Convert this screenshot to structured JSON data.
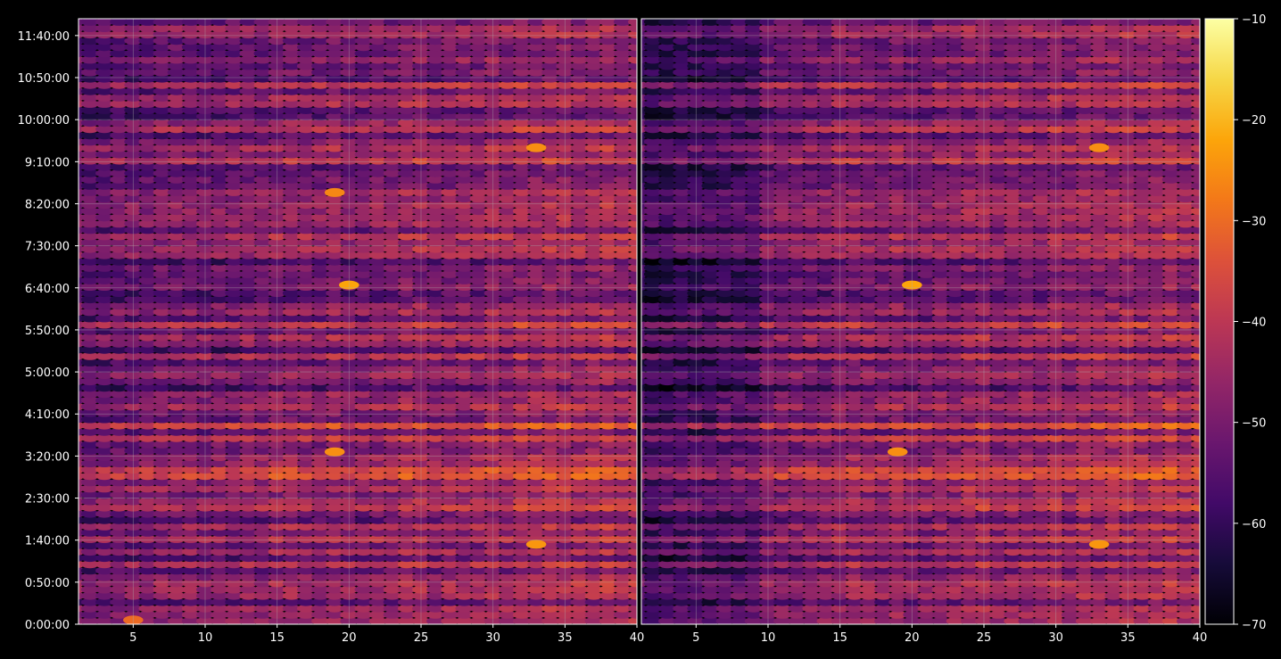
{
  "chart_data": {
    "type": "heatmap",
    "title": "",
    "xlabel": "",
    "ylabel": "",
    "panels": [
      {
        "name": "left",
        "xlim": [
          1.2,
          40
        ],
        "x_ticks": [
          5,
          10,
          15,
          20,
          25,
          30,
          35,
          40
        ],
        "x_tick_labels": [
          "5",
          "10",
          "15",
          "20",
          "25",
          "30",
          "35",
          "40"
        ],
        "x_bins": [
          1,
          40
        ]
      },
      {
        "name": "right",
        "xlim": [
          1.2,
          40
        ],
        "x_ticks": [
          5,
          10,
          15,
          20,
          25,
          30,
          35,
          40
        ],
        "x_tick_labels": [
          "5",
          "10",
          "15",
          "20",
          "25",
          "30",
          "35",
          "40"
        ],
        "x_bins": [
          1,
          40
        ]
      }
    ],
    "y_unit": "time of day (seconds)",
    "ylim": [
      0,
      43200
    ],
    "y_ticks": [
      0,
      3000,
      6000,
      9000,
      12000,
      15000,
      18000,
      21000,
      24000,
      27000,
      30000,
      33000,
      36000,
      39000,
      42000
    ],
    "y_tick_labels": [
      "0:00:00",
      "0:50:00",
      "1:40:00",
      "2:30:00",
      "3:20:00",
      "4:10:00",
      "5:00:00",
      "5:50:00",
      "6:40:00",
      "7:30:00",
      "8:20:00",
      "9:10:00",
      "10:00:00",
      "10:50:00",
      "11:40:00"
    ],
    "colorbar": {
      "colormap": "inferno",
      "range": [
        -70,
        -10
      ],
      "ticks": [
        -70,
        -60,
        -50,
        -40,
        -30,
        -20,
        -10
      ],
      "tick_labels": [
        "−70",
        "−60",
        "−50",
        "−40",
        "−30",
        "−20",
        "−10"
      ]
    },
    "grid": true,
    "hot_spots": [
      {
        "panel": "left",
        "x": 20,
        "y": 24200,
        "value": -22
      },
      {
        "panel": "left",
        "x": 19,
        "y": 12300,
        "value": -25
      },
      {
        "panel": "left",
        "x": 33,
        "y": 5700,
        "value": -24
      },
      {
        "panel": "left",
        "x": 33,
        "y": 34000,
        "value": -25
      },
      {
        "panel": "left",
        "x": 19,
        "y": 30800,
        "value": -26
      },
      {
        "panel": "left",
        "x": 5,
        "y": 300,
        "value": -30
      },
      {
        "panel": "right",
        "x": 20,
        "y": 24200,
        "value": -22
      },
      {
        "panel": "right",
        "x": 19,
        "y": 12300,
        "value": -25
      },
      {
        "panel": "right",
        "x": 33,
        "y": 5700,
        "value": -24
      },
      {
        "panel": "right",
        "x": 33,
        "y": 34000,
        "value": -25
      }
    ]
  },
  "colors": {
    "background": "#000000",
    "axis": "#ffffff",
    "grid": "#b0b0b0"
  }
}
